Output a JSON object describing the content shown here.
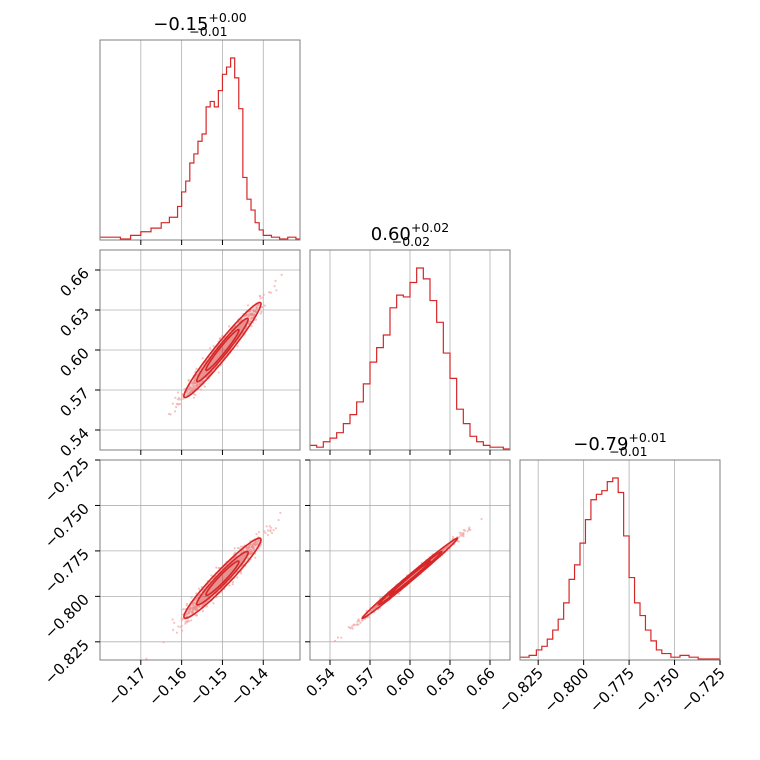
{
  "chart_data": {
    "type": "corner",
    "color": "#d62728",
    "scatter_color": "#f4a6a6",
    "grid": true,
    "parameters": [
      {
        "title": {
          "value": "−0.15",
          "plus": "+0.00",
          "minus": "−0.01"
        },
        "range": [
          -0.18,
          -0.131
        ],
        "ticks": [
          -0.17,
          -0.16,
          -0.15,
          -0.14
        ],
        "tick_labels": [
          "−0.17",
          "−0.16",
          "−0.15",
          "−0.14"
        ],
        "median": -0.15,
        "sigma": 0.0045,
        "hist": [
          {
            "x": -0.18,
            "d": 0.01
          },
          {
            "x": -0.1775,
            "d": 0.01
          },
          {
            "x": -0.175,
            "d": 0.0
          },
          {
            "x": -0.1725,
            "d": 0.02
          },
          {
            "x": -0.17,
            "d": 0.04
          },
          {
            "x": -0.1675,
            "d": 0.06
          },
          {
            "x": -0.165,
            "d": 0.09
          },
          {
            "x": -0.163,
            "d": 0.12
          },
          {
            "x": -0.161,
            "d": 0.18
          },
          {
            "x": -0.16,
            "d": 0.26
          },
          {
            "x": -0.159,
            "d": 0.32
          },
          {
            "x": -0.158,
            "d": 0.42
          },
          {
            "x": -0.157,
            "d": 0.47
          },
          {
            "x": -0.156,
            "d": 0.54
          },
          {
            "x": -0.155,
            "d": 0.58
          },
          {
            "x": -0.154,
            "d": 0.73
          },
          {
            "x": -0.153,
            "d": 0.76
          },
          {
            "x": -0.152,
            "d": 0.73
          },
          {
            "x": -0.151,
            "d": 0.82
          },
          {
            "x": -0.15,
            "d": 0.91
          },
          {
            "x": -0.149,
            "d": 0.95
          },
          {
            "x": -0.148,
            "d": 1.0
          },
          {
            "x": -0.147,
            "d": 0.89
          },
          {
            "x": -0.146,
            "d": 0.72
          },
          {
            "x": -0.145,
            "d": 0.34
          },
          {
            "x": -0.144,
            "d": 0.22
          },
          {
            "x": -0.143,
            "d": 0.16
          },
          {
            "x": -0.142,
            "d": 0.09
          },
          {
            "x": -0.141,
            "d": 0.05
          },
          {
            "x": -0.14,
            "d": 0.02
          },
          {
            "x": -0.138,
            "d": 0.01
          },
          {
            "x": -0.136,
            "d": 0.0
          },
          {
            "x": -0.134,
            "d": 0.01
          },
          {
            "x": -0.132,
            "d": 0.0
          }
        ]
      },
      {
        "title": {
          "value": "0.60",
          "plus": "+0.02",
          "minus": "−0.02"
        },
        "range": [
          0.525,
          0.675
        ],
        "ticks": [
          0.54,
          0.57,
          0.6,
          0.63,
          0.66
        ],
        "tick_labels": [
          "0.54",
          "0.57",
          "0.60",
          "0.63",
          "0.66"
        ],
        "median": 0.6,
        "sigma": 0.017,
        "hist": [
          {
            "x": 0.525,
            "d": 0.02
          },
          {
            "x": 0.53,
            "d": 0.01
          },
          {
            "x": 0.535,
            "d": 0.04
          },
          {
            "x": 0.54,
            "d": 0.06
          },
          {
            "x": 0.545,
            "d": 0.09
          },
          {
            "x": 0.55,
            "d": 0.14
          },
          {
            "x": 0.555,
            "d": 0.19
          },
          {
            "x": 0.56,
            "d": 0.26
          },
          {
            "x": 0.565,
            "d": 0.36
          },
          {
            "x": 0.57,
            "d": 0.48
          },
          {
            "x": 0.575,
            "d": 0.56
          },
          {
            "x": 0.58,
            "d": 0.63
          },
          {
            "x": 0.585,
            "d": 0.78
          },
          {
            "x": 0.59,
            "d": 0.85
          },
          {
            "x": 0.595,
            "d": 0.84
          },
          {
            "x": 0.6,
            "d": 0.92
          },
          {
            "x": 0.605,
            "d": 1.0
          },
          {
            "x": 0.61,
            "d": 0.94
          },
          {
            "x": 0.615,
            "d": 0.82
          },
          {
            "x": 0.62,
            "d": 0.7
          },
          {
            "x": 0.625,
            "d": 0.53
          },
          {
            "x": 0.63,
            "d": 0.39
          },
          {
            "x": 0.635,
            "d": 0.22
          },
          {
            "x": 0.64,
            "d": 0.14
          },
          {
            "x": 0.645,
            "d": 0.07
          },
          {
            "x": 0.65,
            "d": 0.04
          },
          {
            "x": 0.655,
            "d": 0.02
          },
          {
            "x": 0.66,
            "d": 0.01
          },
          {
            "x": 0.665,
            "d": 0.01
          },
          {
            "x": 0.67,
            "d": 0.0
          }
        ]
      },
      {
        "title": {
          "value": "−0.79",
          "plus": "+0.01",
          "minus": "−0.01"
        },
        "range": [
          -0.835,
          -0.725
        ],
        "ticks": [
          -0.825,
          -0.8,
          -0.775,
          -0.75,
          -0.725
        ],
        "tick_labels": [
          "−0.825",
          "−0.800",
          "−0.775",
          "−0.750",
          "−0.725"
        ],
        "median": -0.79,
        "sigma": 0.0105,
        "hist": [
          {
            "x": -0.835,
            "d": 0.01
          },
          {
            "x": -0.83,
            "d": 0.02
          },
          {
            "x": -0.826,
            "d": 0.05
          },
          {
            "x": -0.823,
            "d": 0.07
          },
          {
            "x": -0.82,
            "d": 0.11
          },
          {
            "x": -0.817,
            "d": 0.16
          },
          {
            "x": -0.814,
            "d": 0.22
          },
          {
            "x": -0.811,
            "d": 0.31
          },
          {
            "x": -0.808,
            "d": 0.44
          },
          {
            "x": -0.805,
            "d": 0.52
          },
          {
            "x": -0.802,
            "d": 0.64
          },
          {
            "x": -0.799,
            "d": 0.77
          },
          {
            "x": -0.796,
            "d": 0.88
          },
          {
            "x": -0.793,
            "d": 0.91
          },
          {
            "x": -0.79,
            "d": 0.93
          },
          {
            "x": -0.787,
            "d": 0.98
          },
          {
            "x": -0.784,
            "d": 1.0
          },
          {
            "x": -0.781,
            "d": 0.92
          },
          {
            "x": -0.778,
            "d": 0.68
          },
          {
            "x": -0.775,
            "d": 0.45
          },
          {
            "x": -0.772,
            "d": 0.31
          },
          {
            "x": -0.769,
            "d": 0.24
          },
          {
            "x": -0.766,
            "d": 0.16
          },
          {
            "x": -0.763,
            "d": 0.1
          },
          {
            "x": -0.76,
            "d": 0.05
          },
          {
            "x": -0.757,
            "d": 0.03
          },
          {
            "x": -0.752,
            "d": 0.01
          },
          {
            "x": -0.747,
            "d": 0.02
          },
          {
            "x": -0.742,
            "d": 0.01
          },
          {
            "x": -0.737,
            "d": 0.0
          },
          {
            "x": -0.73,
            "d": 0.0
          }
        ]
      }
    ],
    "pairs": [
      {
        "row": 1,
        "col": 0,
        "correlation": 0.97
      },
      {
        "row": 2,
        "col": 0,
        "correlation": 0.96
      },
      {
        "row": 2,
        "col": 1,
        "correlation": 0.995
      }
    ]
  }
}
